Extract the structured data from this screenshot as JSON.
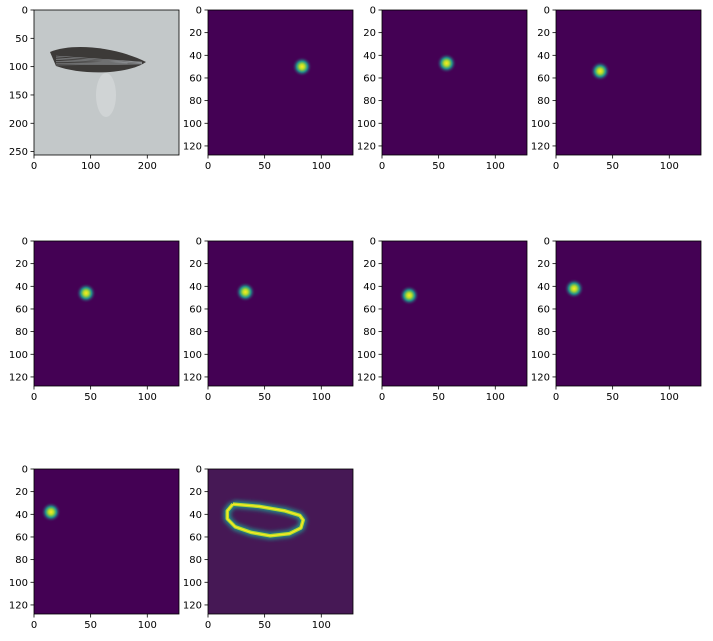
{
  "chart_data": [
    {
      "type": "image",
      "description_visible": "photo",
      "xlim": [
        0,
        256
      ],
      "ylim": [
        256,
        0
      ],
      "xticks": [
        0,
        100,
        200
      ],
      "yticks": [
        0,
        50,
        100,
        150,
        200,
        250
      ]
    },
    {
      "type": "heatmap",
      "colormap": "viridis",
      "xlim": [
        0,
        128
      ],
      "ylim": [
        128,
        0
      ],
      "xticks": [
        0,
        50,
        100
      ],
      "yticks": [
        0,
        20,
        40,
        60,
        80,
        100,
        120
      ],
      "peak": [
        83,
        50
      ]
    },
    {
      "type": "heatmap",
      "colormap": "viridis",
      "xlim": [
        0,
        128
      ],
      "ylim": [
        128,
        0
      ],
      "xticks": [
        0,
        50,
        100
      ],
      "yticks": [
        0,
        20,
        40,
        60,
        80,
        100,
        120
      ],
      "peak": [
        57,
        47
      ]
    },
    {
      "type": "heatmap",
      "colormap": "viridis",
      "xlim": [
        0,
        128
      ],
      "ylim": [
        128,
        0
      ],
      "xticks": [
        0,
        50,
        100
      ],
      "yticks": [
        0,
        20,
        40,
        60,
        80,
        100,
        120
      ],
      "peak": [
        39,
        54
      ]
    },
    {
      "type": "heatmap",
      "colormap": "viridis",
      "xlim": [
        0,
        128
      ],
      "ylim": [
        128,
        0
      ],
      "xticks": [
        0,
        50,
        100
      ],
      "yticks": [
        0,
        20,
        40,
        60,
        80,
        100,
        120
      ],
      "peak": [
        46,
        46
      ]
    },
    {
      "type": "heatmap",
      "colormap": "viridis",
      "xlim": [
        0,
        128
      ],
      "ylim": [
        128,
        0
      ],
      "xticks": [
        0,
        50,
        100
      ],
      "yticks": [
        0,
        20,
        40,
        60,
        80,
        100,
        120
      ],
      "peak": [
        33,
        45
      ]
    },
    {
      "type": "heatmap",
      "colormap": "viridis",
      "xlim": [
        0,
        128
      ],
      "ylim": [
        128,
        0
      ],
      "xticks": [
        0,
        50,
        100
      ],
      "yticks": [
        0,
        20,
        40,
        60,
        80,
        100,
        120
      ],
      "peak": [
        24,
        48
      ]
    },
    {
      "type": "heatmap",
      "colormap": "viridis",
      "xlim": [
        0,
        128
      ],
      "ylim": [
        128,
        0
      ],
      "xticks": [
        0,
        50,
        100
      ],
      "yticks": [
        0,
        20,
        40,
        60,
        80,
        100,
        120
      ],
      "peak": [
        16,
        42
      ]
    },
    {
      "type": "heatmap",
      "colormap": "viridis",
      "xlim": [
        0,
        128
      ],
      "ylim": [
        128,
        0
      ],
      "xticks": [
        0,
        50,
        100
      ],
      "yticks": [
        0,
        20,
        40,
        60,
        80,
        100,
        120
      ],
      "peak": [
        15,
        38
      ]
    },
    {
      "type": "heatmap",
      "colormap": "viridis",
      "xlim": [
        0,
        128
      ],
      "ylim": [
        128,
        0
      ],
      "xticks": [
        0,
        50,
        100
      ],
      "yticks": [
        0,
        20,
        40,
        60,
        80,
        100,
        120
      ],
      "contour": [
        [
          22,
          31
        ],
        [
          45,
          33
        ],
        [
          68,
          37
        ],
        [
          81,
          41
        ],
        [
          84,
          45
        ],
        [
          82,
          52
        ],
        [
          72,
          57
        ],
        [
          55,
          59
        ],
        [
          38,
          56
        ],
        [
          24,
          51
        ],
        [
          17,
          44
        ],
        [
          17,
          37
        ],
        [
          22,
          31
        ]
      ]
    }
  ],
  "colors": {
    "bg_dark": "#440154",
    "bg_dark_alt": "#461855",
    "peak_mid": "#21918c",
    "peak_high": "#b5de2b",
    "peak_top": "#fde725",
    "photo_bg": "#c3c8c9",
    "insect_dark": "#3c3a38"
  }
}
